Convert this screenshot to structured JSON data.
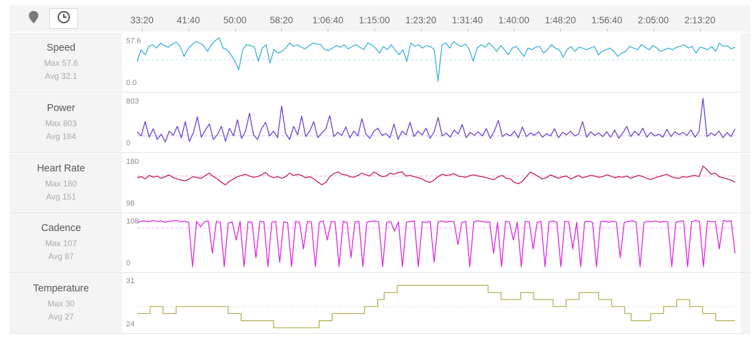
{
  "toolbar": {
    "map_icon": "map-pin-icon",
    "time_icon": "clock-icon"
  },
  "chart_data": {
    "type": "line",
    "x_axis": {
      "ticks": [
        "33:20",
        "41:40",
        "50:00",
        "58:20",
        "1:06:40",
        "1:15:00",
        "1:23:20",
        "1:31:40",
        "1:40:00",
        "1:48:20",
        "1:56:40",
        "2:05:00",
        "2:13:20"
      ]
    },
    "series": [
      {
        "name": "Speed",
        "color": "#3aaed8",
        "stat_max": "Max 57.6",
        "stat_avg": "Avg 32.1",
        "y_top_label": "57.6",
        "y_bottom_label": "0.0",
        "ylim": [
          0,
          57.6
        ],
        "avg": 32.1,
        "values": [
          30,
          44,
          38,
          48,
          50,
          46,
          52,
          49,
          47,
          51,
          53,
          48,
          36,
          45,
          50,
          54,
          52,
          49,
          42,
          50,
          55,
          58,
          46,
          44,
          38,
          30,
          20,
          44,
          50,
          49,
          47,
          30,
          46,
          50,
          28,
          44,
          40,
          42,
          46,
          52,
          48,
          50,
          47,
          45,
          49,
          52,
          51,
          50,
          44,
          43,
          46,
          49,
          47,
          50,
          45,
          48,
          50,
          47,
          44,
          52,
          50,
          46,
          40,
          48,
          44,
          50,
          44,
          38,
          44,
          30,
          52,
          48,
          50,
          46,
          49,
          48,
          44,
          6,
          50,
          52,
          46,
          54,
          50,
          48,
          51,
          44,
          30,
          46,
          50,
          47,
          52,
          48,
          42,
          49,
          44,
          38,
          46,
          48,
          42,
          36,
          46,
          44,
          47,
          48,
          40,
          44,
          50,
          46,
          44,
          35,
          44,
          48,
          42,
          47,
          46,
          44,
          46,
          48,
          38,
          42,
          44,
          46,
          42,
          36,
          40,
          42,
          48,
          46,
          44,
          50,
          47,
          44,
          49,
          46,
          42,
          44,
          46,
          44,
          47,
          48,
          50,
          46,
          48,
          40,
          47,
          46,
          44,
          48,
          42,
          52,
          48,
          49,
          45,
          47
        ]
      },
      {
        "name": "Power",
        "color": "#6a3ecb",
        "stat_max": "Max 803",
        "stat_avg": "Avg 184",
        "y_top_label": "803",
        "y_bottom_label": "0",
        "ylim": [
          0,
          803
        ],
        "avg": 184,
        "values": [
          250,
          180,
          420,
          160,
          300,
          120,
          210,
          80,
          260,
          190,
          340,
          150,
          420,
          90,
          230,
          500,
          160,
          280,
          380,
          120,
          200,
          340,
          90,
          310,
          180,
          450,
          140,
          260,
          560,
          200,
          120,
          300,
          410,
          180,
          260,
          150,
          680,
          220,
          120,
          340,
          200,
          510,
          170,
          260,
          420,
          150,
          230,
          300,
          520,
          170,
          240,
          190,
          330,
          150,
          260,
          180,
          470,
          210,
          140,
          260,
          310,
          190,
          220,
          150,
          380,
          120,
          260,
          200,
          410,
          170,
          260,
          200,
          310,
          140,
          250,
          490,
          180,
          230,
          160,
          280,
          210,
          370,
          150,
          240,
          190,
          250,
          180,
          300,
          140,
          260,
          440,
          170,
          220,
          180,
          260,
          150,
          330,
          170,
          230,
          190,
          250,
          160,
          220,
          180,
          300,
          150,
          240,
          200,
          260,
          180,
          210,
          420,
          160,
          250,
          190,
          230,
          170,
          250,
          160,
          280,
          140,
          230,
          340,
          170,
          260,
          190,
          310,
          160,
          240,
          180,
          210,
          160,
          290,
          170,
          250,
          200,
          240,
          190,
          280,
          160,
          250,
          810,
          170,
          230,
          190,
          260,
          150,
          240,
          170,
          300
        ]
      },
      {
        "name": "Heart Rate",
        "color": "#c2185b",
        "stat_max": "Max 180",
        "stat_avg": "Avg 151",
        "y_top_label": "180",
        "y_bottom_label": "98",
        "ylim": [
          98,
          180
        ],
        "avg": 151,
        "values": [
          148,
          150,
          146,
          152,
          149,
          151,
          147,
          150,
          153,
          148,
          146,
          144,
          143,
          146,
          150,
          148,
          147,
          152,
          156,
          150,
          146,
          140,
          136,
          142,
          146,
          150,
          152,
          154,
          151,
          149,
          150,
          153,
          157,
          151,
          148,
          150,
          147,
          150,
          156,
          152,
          154,
          152,
          148,
          150,
          146,
          141,
          136,
          140,
          150,
          155,
          158,
          154,
          153,
          150,
          149,
          152,
          156,
          153,
          151,
          158,
          154,
          150,
          151,
          156,
          154,
          157,
          158,
          151,
          152,
          150,
          148,
          146,
          142,
          140,
          144,
          150,
          154,
          152,
          153,
          155,
          151,
          150,
          149,
          152,
          153,
          151,
          150,
          148,
          146,
          145,
          150,
          152,
          147,
          146,
          140,
          138,
          142,
          150,
          158,
          154,
          150,
          146,
          148,
          153,
          150,
          147,
          150,
          151,
          146,
          149,
          152,
          148,
          150,
          152,
          151,
          149,
          150,
          153,
          151,
          148,
          150,
          149,
          151,
          147,
          150,
          152,
          150,
          147,
          145,
          148,
          150,
          152,
          154,
          150,
          148,
          147,
          150,
          149,
          151,
          152,
          150,
          168,
          162,
          154,
          156,
          150,
          148,
          146,
          144,
          140
        ]
      },
      {
        "name": "Cadence",
        "color": "#e020e0",
        "stat_max": "Max 107",
        "stat_avg": "Avg 87",
        "y_top_label": "108",
        "y_bottom_label": "0",
        "ylim": [
          0,
          108
        ],
        "avg": 87,
        "values": [
          100,
          102,
          103,
          101,
          104,
          102,
          103,
          100,
          102,
          103,
          104,
          101,
          102,
          100,
          0,
          102,
          90,
          101,
          103,
          30,
          102,
          100,
          0,
          98,
          101,
          60,
          102,
          0,
          101,
          100,
          20,
          102,
          101,
          0,
          100,
          102,
          10,
          101,
          99,
          0,
          102,
          100,
          40,
          102,
          101,
          0,
          100,
          103,
          60,
          102,
          101,
          0,
          102,
          100,
          20,
          101,
          102,
          0,
          100,
          102,
          103,
          101,
          0,
          100,
          102,
          80,
          101,
          0,
          100,
          102,
          103,
          0,
          101,
          100,
          102,
          10,
          101,
          103,
          100,
          102,
          101,
          50,
          100,
          102,
          0,
          101,
          103,
          102,
          100,
          101,
          30,
          100,
          0,
          102,
          101,
          60,
          100,
          0,
          102,
          101,
          40,
          100,
          102,
          0,
          101,
          103,
          100,
          0,
          102,
          101,
          40,
          100,
          0,
          101,
          102,
          100,
          0,
          101,
          103,
          100,
          102,
          101,
          20,
          100,
          102,
          103,
          101,
          0,
          100,
          102,
          101,
          103,
          100,
          102,
          101,
          0,
          100,
          102,
          103,
          0,
          101,
          104,
          102,
          0,
          103,
          101,
          102,
          40,
          104,
          102,
          103,
          30
        ]
      },
      {
        "name": "Temperature",
        "color": "#b5b05a",
        "stat_max": "Max 30",
        "stat_avg": "Avg 27",
        "y_top_label": "31",
        "y_bottom_label": "24",
        "ylim": [
          24,
          31
        ],
        "avg": 27,
        "values": [
          26,
          26,
          27,
          27,
          26,
          26,
          27,
          27,
          27,
          27,
          27,
          27,
          27,
          27,
          26,
          26,
          25,
          25,
          25,
          25,
          25,
          24,
          24,
          24,
          24,
          24,
          24,
          24,
          25,
          25,
          26,
          26,
          26,
          26,
          26,
          27,
          27,
          28,
          29,
          29,
          30,
          30,
          30,
          30,
          30,
          30,
          30,
          30,
          30,
          30,
          30,
          30,
          30,
          30,
          29,
          29,
          28,
          28,
          28,
          29,
          29,
          28,
          28,
          28,
          27,
          27,
          28,
          28,
          29,
          29,
          29,
          28,
          28,
          27,
          27,
          26,
          25,
          25,
          25,
          26,
          26,
          27,
          27,
          28,
          28,
          27,
          27,
          26,
          26,
          25,
          25,
          25
        ]
      }
    ]
  }
}
